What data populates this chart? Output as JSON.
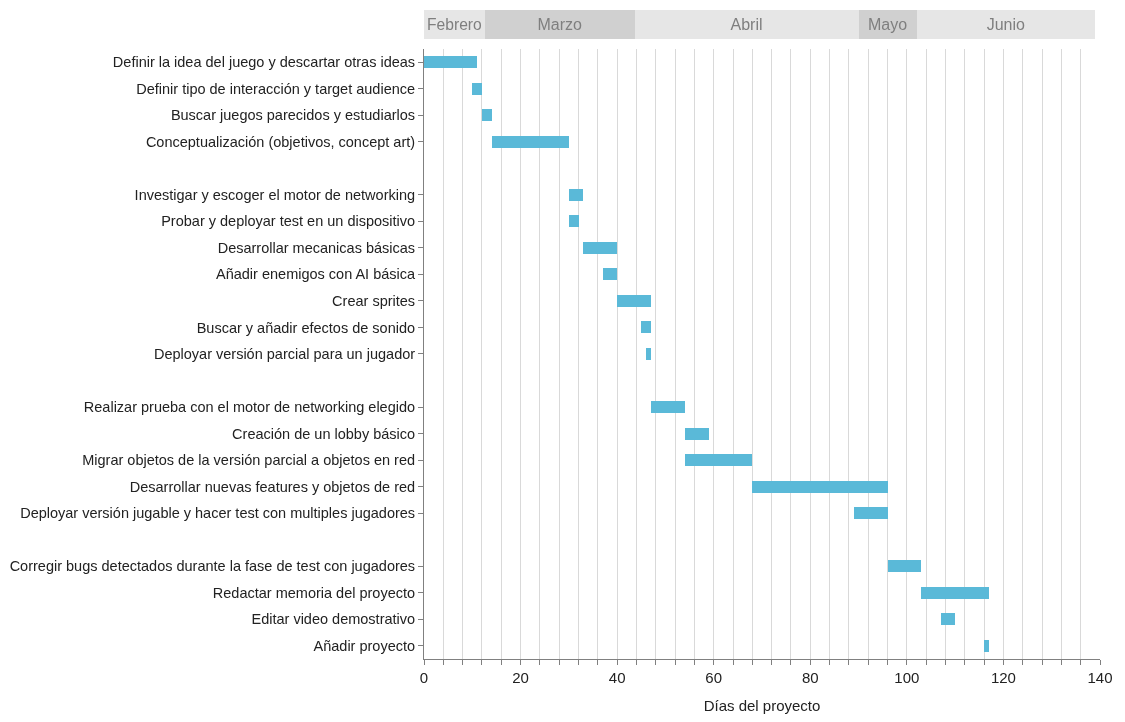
{
  "chart_data": [
    {
      "type": "bar",
      "orientation": "horizontal",
      "stacked": true,
      "categories": [
        null
      ],
      "series": [
        {
          "name": "Febrero",
          "color": "#e6e6e6",
          "values": [
            12.6
          ]
        },
        {
          "name": "Marzo",
          "color": "#d0d0d0",
          "values": [
            31
          ]
        },
        {
          "name": "Abril",
          "color": "#e6e6e6",
          "values": [
            46.4
          ]
        },
        {
          "name": "Mayo",
          "color": "#d0d0d0",
          "values": [
            12
          ]
        },
        {
          "name": "Junio",
          "color": "#e6e6e6",
          "values": [
            37
          ]
        }
      ],
      "xlim": [
        0,
        140
      ],
      "tick_labels": false,
      "grid": false,
      "legend": false
    },
    {
      "type": "bar",
      "orientation": "horizontal",
      "xlabel": "Días del proyecto",
      "categories": [
        "Definir la idea del juego y descartar otras ideas",
        "Definir tipo de interacción y target audience",
        "Buscar juegos parecidos y estudiarlos",
        "Conceptualización (objetivos, concept art)",
        null,
        "Investigar y escoger el motor de networking",
        "Probar y deployar test en un dispositivo",
        "Desarrollar mecanicas básicas",
        "Añadir enemigos con AI básica",
        "Crear sprites",
        "Buscar y añadir efectos de sonido",
        "Deployar versión parcial para un jugador",
        null,
        "Realizar prueba con el motor de networking elegido",
        "Creación de un lobby básico",
        "Migrar objetos de la versión parcial a objetos en red",
        "Desarrollar nuevas features y objetos de red",
        "Deployar versión jugable y hacer test con multiples jugadores",
        null,
        "Corregir bugs detectados durante la fase de test con jugadores",
        "Redactar memoria del proyecto",
        "Editar video demostrativo",
        "Añadir proyecto"
      ],
      "base": [
        0,
        10,
        12,
        14,
        null,
        30,
        30,
        33,
        37,
        40,
        45,
        46,
        null,
        47,
        54,
        54,
        68,
        89,
        null,
        96,
        103,
        107,
        116
      ],
      "values": [
        11,
        2,
        2,
        16,
        null,
        3,
        2,
        7,
        3,
        7,
        2,
        1,
        null,
        7,
        5,
        14,
        28,
        7,
        null,
        7,
        14,
        3,
        1
      ],
      "color": "#5ab9d8",
      "xlim": [
        0,
        140
      ],
      "xticks": [
        0,
        {
          "value": 4,
          "label": null
        },
        {
          "value": 8,
          "label": null
        },
        {
          "value": 12,
          "label": null
        },
        {
          "value": 16,
          "label": null
        },
        20,
        {
          "value": 24,
          "label": null
        },
        {
          "value": 28,
          "label": null
        },
        {
          "value": 32,
          "label": null
        },
        {
          "value": 36,
          "label": null
        },
        40,
        {
          "value": 44,
          "label": null
        },
        {
          "value": 48,
          "label": null
        },
        {
          "value": 52,
          "label": null
        },
        {
          "value": 56,
          "label": null
        },
        60,
        {
          "value": 64,
          "label": null
        },
        {
          "value": 68,
          "label": null
        },
        {
          "value": 72,
          "label": null
        },
        {
          "value": 76,
          "label": null
        },
        80,
        {
          "value": 84,
          "label": null
        },
        {
          "value": 88,
          "label": null
        },
        {
          "value": 92,
          "label": null
        },
        {
          "value": 96,
          "label": null
        },
        100,
        {
          "value": 104,
          "label": null
        },
        {
          "value": 108,
          "label": null
        },
        {
          "value": 112,
          "label": null
        },
        {
          "value": 116,
          "label": null
        },
        120,
        {
          "value": 124,
          "label": null
        },
        {
          "value": 128,
          "label": null
        },
        {
          "value": 132,
          "label": null
        },
        {
          "value": 136,
          "label": null
        },
        140
      ],
      "grid": "x",
      "legend": false
    }
  ]
}
